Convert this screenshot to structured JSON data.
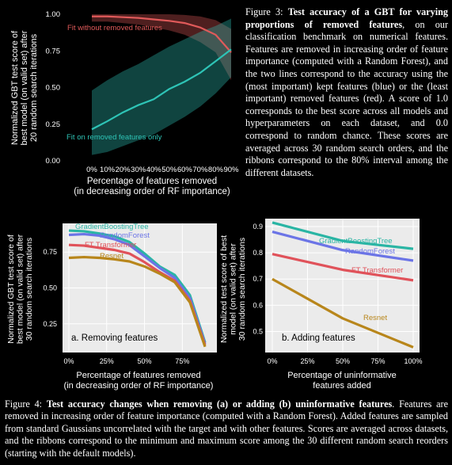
{
  "figure3": {
    "caption_label": "Figure 3:",
    "caption_bold": "Test accuracy of a GBT for varying proportions of removed features",
    "caption_text": ", on our classification benchmark on numerical features. Features are removed in increasing order of feature importance (computed with a Random Forest), and the two lines correspond to the accuracy using the (most important) kept features (blue) or the (least important) removed features (red). A score of 1.0 corresponds to the best score across all models and hyperparameters on each dataset, and 0.0 correspond to random chance. These scores are averaged across 30 random search orders, and the ribbons correspond to the 80% interval among the different datasets.",
    "chart_data": {
      "type": "line",
      "ylabel": [
        "Normalized GBT test score of",
        "best model (on valid set) after",
        "20 random search iterations"
      ],
      "xlabel": [
        "Percentage of features removed",
        "(in decreasing order of RF importance)"
      ],
      "x": [
        0,
        10,
        20,
        30,
        40,
        50,
        60,
        70,
        80,
        90
      ],
      "xticklabels": [
        "0%",
        "10%",
        "20%",
        "30%",
        "40%",
        "50%",
        "60%",
        "70%",
        "80%",
        "90%"
      ],
      "yticks": [
        0.0,
        0.25,
        0.5,
        0.75,
        1.0
      ],
      "yticklabels": [
        "0.00",
        "0.25",
        "0.50",
        "0.75",
        "1.00"
      ],
      "ylim": [
        0,
        1
      ],
      "series": [
        {
          "name": "Fit without removed features",
          "color": "#e05a5a",
          "values": [
            0.985,
            0.985,
            0.98,
            0.975,
            0.965,
            0.955,
            0.94,
            0.91,
            0.86,
            0.74
          ],
          "lower": [
            0.95,
            0.95,
            0.94,
            0.93,
            0.91,
            0.89,
            0.86,
            0.81,
            0.74,
            0.55
          ],
          "upper": [
            1.0,
            1.0,
            1.0,
            1.0,
            1.0,
            1.0,
            0.995,
            0.985,
            0.96,
            0.9
          ]
        },
        {
          "name": "Fit on removed features only",
          "color": "#2ec4b6",
          "values": [
            0.215,
            0.27,
            0.33,
            0.38,
            0.42,
            0.49,
            0.54,
            0.6,
            0.68,
            0.76
          ],
          "lower": [
            0.04,
            0.06,
            0.1,
            0.14,
            0.18,
            0.24,
            0.3,
            0.37,
            0.46,
            0.57
          ],
          "upper": [
            0.48,
            0.55,
            0.61,
            0.66,
            0.72,
            0.78,
            0.83,
            0.88,
            0.92,
            0.97
          ]
        }
      ]
    }
  },
  "figure4": {
    "caption_label": "Figure 4:",
    "caption_bold": "Test accuracy changes when removing (a) or adding (b) uninformative features",
    "caption_text": ". Features are removed in increasing order of feature importance (computed with a Random Forest). Added features are sampled from standard Gaussians uncorrelated with the target and with other features. Scores are averaged across datasets, and the ribbons correspond to the minimum and maximum score among the 30 different random search reorders (starting with the default models).",
    "chart_data": [
      {
        "type": "line",
        "panel_label": "a. Removing features",
        "ylabel": [
          "Normalized GBT test score of",
          "best model (on valid set) after",
          "30 random search iterations"
        ],
        "xlabel": [
          "Percentage of features removed",
          "(in decreasing order of RF importance)"
        ],
        "x": [
          0,
          10,
          20,
          30,
          40,
          50,
          60,
          70,
          80,
          90
        ],
        "xticks": [
          0,
          25,
          50,
          75
        ],
        "xticklabels": [
          "0%",
          "25%",
          "50%",
          "75%"
        ],
        "yticks": [
          0.25,
          0.5,
          0.75
        ],
        "yticklabels": [
          "0.25",
          "0.50",
          "0.75"
        ],
        "ylim": [
          0.05,
          0.95
        ],
        "series": [
          {
            "name": "GradientBoostingTree",
            "color": "#2ab5a4",
            "values": [
              0.9,
              0.895,
              0.88,
              0.86,
              0.82,
              0.74,
              0.65,
              0.59,
              0.45,
              0.12
            ]
          },
          {
            "name": "RandomForest",
            "color": "#6b74e6",
            "values": [
              0.87,
              0.875,
              0.865,
              0.84,
              0.8,
              0.72,
              0.64,
              0.57,
              0.43,
              0.11
            ]
          },
          {
            "name": "FT Transformer",
            "color": "#e0525a",
            "values": [
              0.8,
              0.795,
              0.78,
              0.765,
              0.74,
              0.68,
              0.61,
              0.55,
              0.41,
              0.1
            ]
          },
          {
            "name": "Resnet",
            "color": "#b8861b",
            "values": [
              0.71,
              0.715,
              0.71,
              0.7,
              0.685,
              0.65,
              0.6,
              0.54,
              0.4,
              0.09
            ]
          }
        ]
      },
      {
        "type": "line",
        "panel_label": "b. Adding features",
        "ylabel": [
          "Normalized test score of best",
          "model (on valid set) after",
          "30 random search iterations"
        ],
        "xlabel": [
          "Percentage of uninformative",
          "features added"
        ],
        "x": [
          0,
          50,
          100
        ],
        "xticks": [
          0,
          25,
          50,
          75,
          100
        ],
        "xticklabels": [
          "0%",
          "25%",
          "50%",
          "75%",
          "100%"
        ],
        "yticks": [
          0.5,
          0.6,
          0.7,
          0.8,
          0.9
        ],
        "yticklabels": [
          "0.5",
          "0.6",
          "0.7",
          "0.8",
          "0.9"
        ],
        "ylim": [
          0.42,
          0.93
        ],
        "series": [
          {
            "name": "GradientBoostingTree",
            "color": "#2ab5a4",
            "values": [
              0.915,
              0.845,
              0.815
            ]
          },
          {
            "name": "RandomForest",
            "color": "#6b74e6",
            "values": [
              0.88,
              0.81,
              0.77
            ]
          },
          {
            "name": "FT Transformer",
            "color": "#e0525a",
            "values": [
              0.795,
              0.735,
              0.695
            ]
          },
          {
            "name": "Resnet",
            "color": "#b8861b",
            "values": [
              0.7,
              0.55,
              0.44
            ]
          }
        ]
      }
    ]
  }
}
